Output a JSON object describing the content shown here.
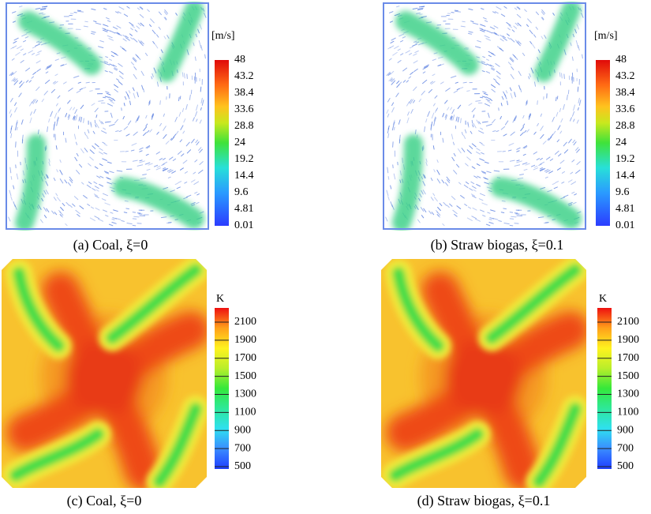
{
  "panels": [
    {
      "caption": "(a) Coal, ξ=0",
      "unit": "[m/s]",
      "ticks": [
        "48",
        "43.2",
        "38.4",
        "33.6",
        "28.8",
        "24",
        "19.2",
        "14.4",
        "9.6",
        "4.81",
        "0.01"
      ]
    },
    {
      "caption": "(b) Straw biogas, ξ=0.1",
      "unit": "[m/s]",
      "ticks": [
        "48",
        "43.2",
        "38.4",
        "33.6",
        "28.8",
        "24",
        "19.2",
        "14.4",
        "9.6",
        "4.81",
        "0.01"
      ]
    },
    {
      "caption": "(c) Coal, ξ=0",
      "unit": "K",
      "ticks": [
        "2100",
        "1900",
        "1700",
        "1500",
        "1300",
        "1100",
        "900",
        "700",
        "500"
      ]
    },
    {
      "caption": "(d) Straw biogas, ξ=0.1",
      "unit": "K",
      "ticks": [
        "2100",
        "1900",
        "1700",
        "1500",
        "1300",
        "1100",
        "900",
        "700",
        "500"
      ]
    }
  ]
}
